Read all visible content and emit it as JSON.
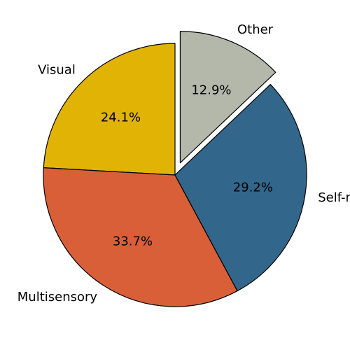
{
  "chart_data": {
    "type": "pie",
    "categories": [
      "Visual",
      "Multisensory",
      "Self-regulation",
      "Other"
    ],
    "values": [
      24.1,
      33.7,
      29.2,
      12.9
    ],
    "labels": [
      "24.1%",
      "33.7%",
      "29.2%",
      "12.9%"
    ],
    "colors": [
      "#E1B304",
      "#D95F39",
      "#33668B",
      "#B3B8AB"
    ],
    "exploded": [
      "Other"
    ],
    "start_angle_deg": 90,
    "direction": "counterclockwise",
    "legend": "none"
  }
}
